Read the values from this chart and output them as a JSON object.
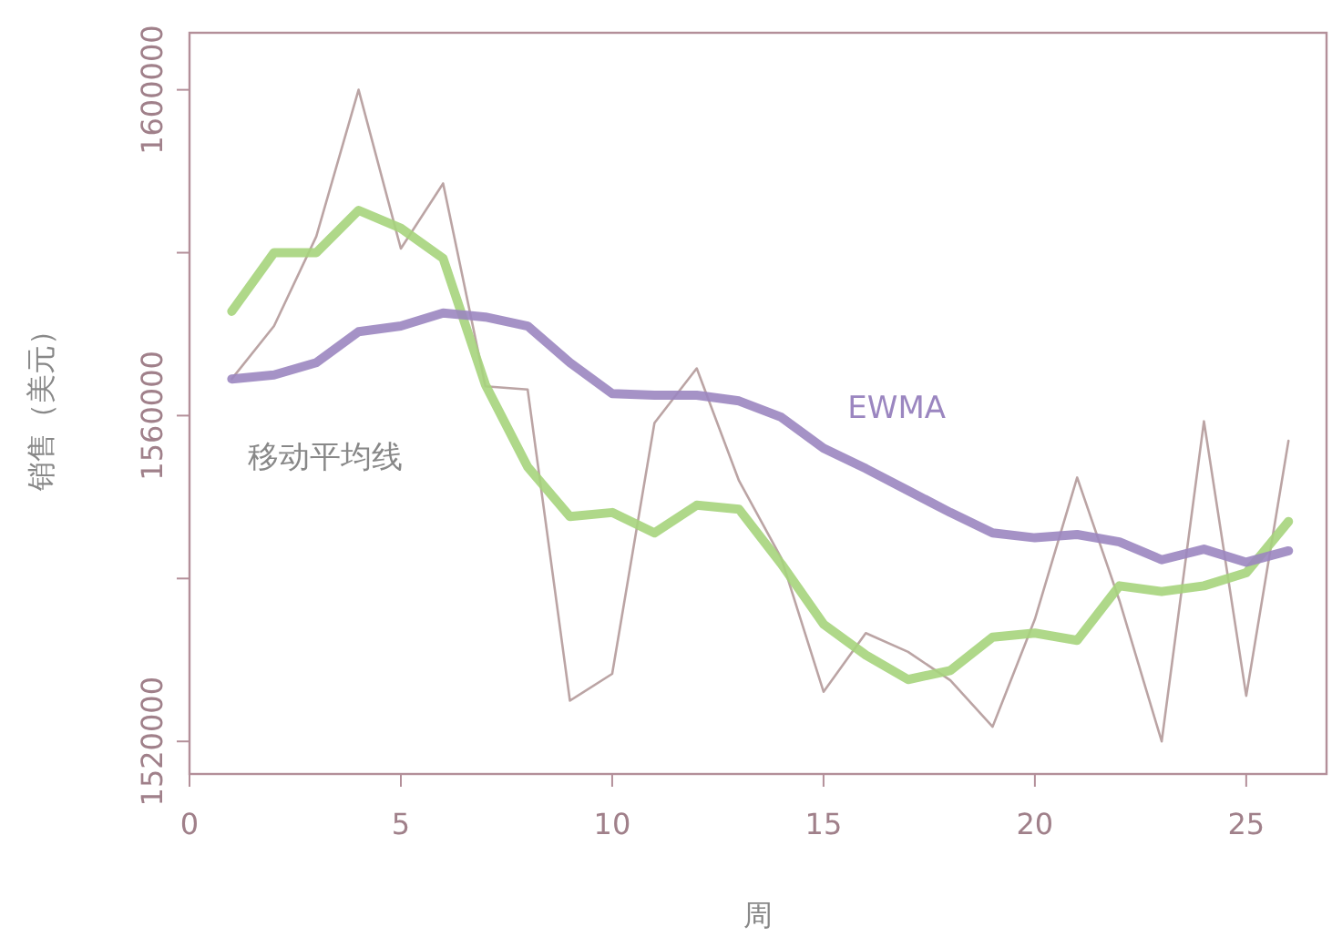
{
  "chart_data": {
    "type": "line",
    "xlabel": "周",
    "ylabel": "销售（美元）",
    "x": [
      1,
      2,
      3,
      4,
      5,
      6,
      7,
      8,
      9,
      10,
      11,
      12,
      13,
      14,
      15,
      16,
      17,
      18,
      19,
      20,
      21,
      22,
      23,
      24,
      25,
      26
    ],
    "series": [
      {
        "color": "#b49a9a",
        "values": [
          1564500,
          1571000,
          1582000,
          1600000,
          1580500,
          1588500,
          1563600,
          1563200,
          1525000,
          1528300,
          1559100,
          1565800,
          1552000,
          1542500,
          1526100,
          1533300,
          1531000,
          1527500,
          1521800,
          1535000,
          1552400,
          1537300,
          1520000,
          1559300,
          1525600,
          1556900
        ]
      },
      {
        "color": "#a6d47c",
        "values": [
          1572800,
          1580000,
          1580000,
          1585200,
          1583000,
          1579300,
          1563800,
          1553700,
          1547600,
          1548100,
          1545600,
          1549000,
          1548500,
          1541800,
          1534400,
          1530600,
          1527600,
          1528700,
          1532800,
          1533300,
          1532400,
          1539100,
          1538400,
          1539100,
          1540700,
          1547000
        ]
      },
      {
        "name": "EWMA",
        "color": "#9b86c0",
        "values": [
          1564500,
          1565000,
          1566500,
          1570300,
          1571000,
          1572600,
          1572100,
          1571000,
          1566500,
          1562700,
          1562500,
          1562500,
          1561800,
          1559800,
          1556000,
          1553500,
          1550800,
          1548100,
          1545600,
          1545000,
          1545400,
          1544500,
          1542300,
          1543600,
          1542000,
          1543400
        ]
      }
    ],
    "xlim": [
      0,
      26.9
    ],
    "ylim": [
      1516000,
      1607000
    ],
    "xticks": [
      0,
      5,
      10,
      15,
      20,
      25
    ],
    "yticks": [
      1520000,
      {
        "value": 1540000,
        "label": null
      },
      1560000,
      {
        "value": 1580000,
        "label": null
      },
      1600000
    ],
    "annotations": [
      "移动平均线"
    ],
    "grid": false,
    "legend": false,
    "line_style": "solid",
    "marker": "none"
  }
}
